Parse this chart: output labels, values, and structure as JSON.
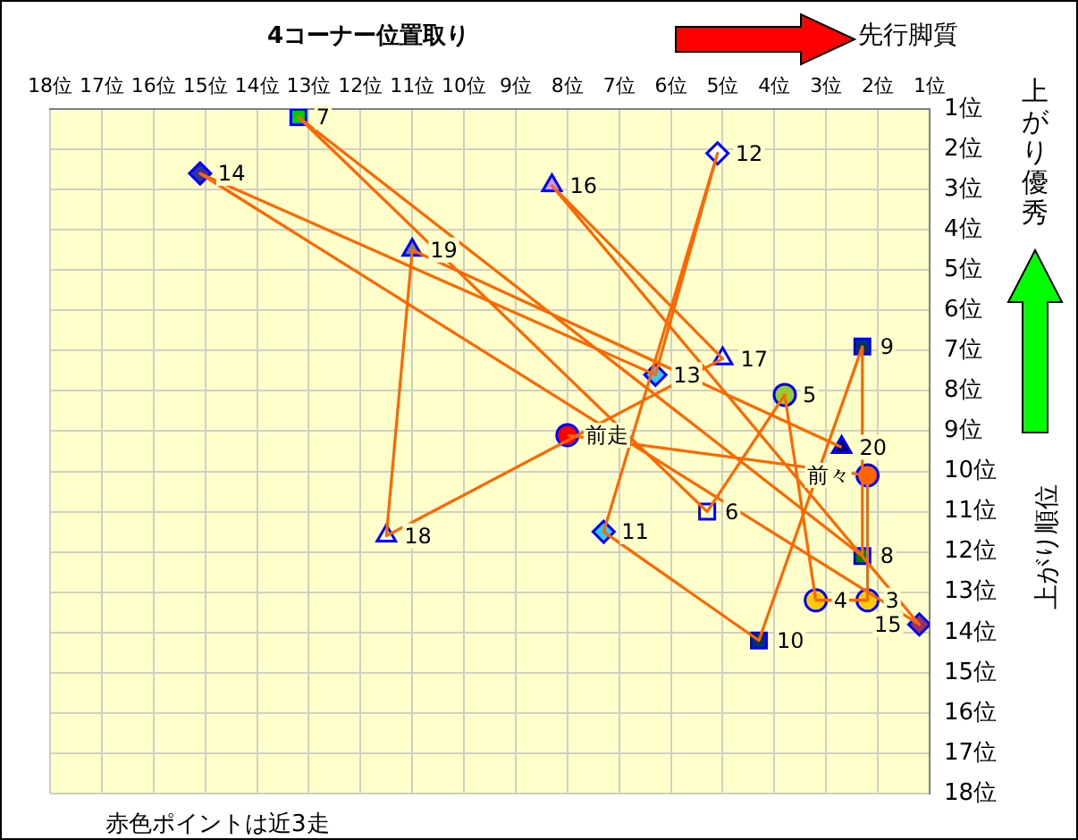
{
  "chart_data": {
    "type": "line",
    "title": "4コーナー位置取り",
    "ylabel": "上がり順位",
    "xlim": [
      18,
      1
    ],
    "ylim": [
      18,
      1
    ],
    "xticks": [
      {
        "value": 18,
        "label": "18位"
      },
      {
        "value": 17,
        "label": "17位"
      },
      {
        "value": 16,
        "label": "16位"
      },
      {
        "value": 15,
        "label": "15位"
      },
      {
        "value": 14,
        "label": "14位"
      },
      {
        "value": 13,
        "label": "13位"
      },
      {
        "value": 12,
        "label": "12位"
      },
      {
        "value": 11,
        "label": "11位"
      },
      {
        "value": 10,
        "label": "10位"
      },
      {
        "value": 9,
        "label": "9位"
      },
      {
        "value": 8,
        "label": "8位"
      },
      {
        "value": 7,
        "label": "7位"
      },
      {
        "value": 6,
        "label": "6位"
      },
      {
        "value": 5,
        "label": "5位"
      },
      {
        "value": 4,
        "label": "4位"
      },
      {
        "value": 3,
        "label": "3位"
      },
      {
        "value": 2,
        "label": "2位"
      },
      {
        "value": 1,
        "label": "1位"
      }
    ],
    "yticks": [
      {
        "value": 1,
        "label": "1位"
      },
      {
        "value": 2,
        "label": "2位"
      },
      {
        "value": 3,
        "label": "3位"
      },
      {
        "value": 4,
        "label": "4位"
      },
      {
        "value": 5,
        "label": "5位"
      },
      {
        "value": 6,
        "label": "6位"
      },
      {
        "value": 7,
        "label": "7位"
      },
      {
        "value": 8,
        "label": "8位"
      },
      {
        "value": 9,
        "label": "9位"
      },
      {
        "value": 10,
        "label": "10位"
      },
      {
        "value": 11,
        "label": "11位"
      },
      {
        "value": 12,
        "label": "12位"
      },
      {
        "value": 13,
        "label": "13位"
      },
      {
        "value": 14,
        "label": "14位"
      },
      {
        "value": 15,
        "label": "15位"
      },
      {
        "value": 16,
        "label": "16位"
      },
      {
        "value": 17,
        "label": "17位"
      },
      {
        "value": 18,
        "label": "18位"
      }
    ],
    "grid": true,
    "legend": false,
    "series": [
      {
        "type": "line",
        "color": "#ff6600",
        "marker": "none",
        "x": [
          8.0,
          2.2,
          2.2,
          3.2,
          3.8,
          5.3,
          13.2,
          2.3,
          2.3,
          4.3,
          7.3,
          5.1,
          6.3,
          15.1,
          1.2,
          8.3,
          5.0,
          11.5,
          11.0,
          2.7
        ],
        "values": [
          9.1,
          10.1,
          13.2,
          13.2,
          8.1,
          11.0,
          1.2,
          12.1,
          6.9,
          14.2,
          11.5,
          2.1,
          7.6,
          2.6,
          13.8,
          2.9,
          7.2,
          11.6,
          4.5,
          9.4
        ]
      },
      {
        "type": "scatter",
        "marker": "circle",
        "color": "#0000ff",
        "x": [
          8.0,
          2.2,
          2.2,
          3.2,
          3.8
        ],
        "values": [
          9.1,
          10.1,
          13.2,
          13.2,
          8.1
        ],
        "colors": [
          "#ff0000",
          "#ff6600",
          "#ffcc00",
          "#ffcc00",
          "#99cc33"
        ]
      },
      {
        "type": "scatter",
        "marker": "square",
        "color": "#0000ff",
        "x": [
          5.3,
          13.2,
          2.3,
          2.3,
          4.3
        ],
        "values": [
          11.0,
          1.2,
          12.1,
          6.9,
          14.2
        ],
        "colors": [
          "#ffffcc",
          "#00cc00",
          "#008000",
          "#003366",
          "#003366"
        ]
      },
      {
        "type": "scatter",
        "marker": "diamond",
        "color": "#0000ff",
        "x": [
          7.3,
          5.1,
          6.3,
          15.1,
          1.2
        ],
        "values": [
          11.5,
          2.1,
          7.6,
          2.6,
          13.8
        ],
        "colors": [
          "#33ccff",
          "#ffffff",
          "#33ccff",
          "#333399",
          "#993366"
        ]
      },
      {
        "type": "scatter",
        "marker": "triangle",
        "color": "#0000ff",
        "x": [
          8.3,
          5.0,
          11.5,
          11.0,
          2.7
        ],
        "values": [
          2.9,
          7.2,
          11.6,
          4.5,
          9.4
        ],
        "colors": [
          "#cc99ff",
          "#ffffff",
          "#ffffff",
          "#808080",
          "#000080"
        ]
      }
    ],
    "annotations": [
      "先行脚質",
      "上がり優秀",
      "赤色ポイントは近3走",
      {
        "text": "前走",
        "x": 8.0,
        "y": 9.1
      },
      {
        "text": "前々",
        "x": 2.2,
        "y": 10.1
      },
      {
        "text": "3",
        "x": 2.2,
        "y": 13.2
      },
      {
        "text": "4",
        "x": 3.2,
        "y": 13.2
      },
      {
        "text": "5",
        "x": 3.8,
        "y": 8.1
      },
      {
        "text": "6",
        "x": 5.3,
        "y": 11.0
      },
      {
        "text": "7",
        "x": 13.2,
        "y": 1.2
      },
      {
        "text": "8",
        "x": 2.3,
        "y": 12.1
      },
      {
        "text": "9",
        "x": 2.3,
        "y": 6.9
      },
      {
        "text": "10",
        "x": 4.3,
        "y": 14.2
      },
      {
        "text": "11",
        "x": 7.3,
        "y": 11.5
      },
      {
        "text": "12",
        "x": 5.1,
        "y": 2.1
      },
      {
        "text": "13",
        "x": 6.3,
        "y": 7.6
      },
      {
        "text": "14",
        "x": 15.1,
        "y": 2.6
      },
      {
        "text": "15",
        "x": 1.2,
        "y": 13.8
      },
      {
        "text": "16",
        "x": 8.3,
        "y": 2.9
      },
      {
        "text": "17",
        "x": 5.0,
        "y": 7.2
      },
      {
        "text": "18",
        "x": 11.5,
        "y": 11.6
      },
      {
        "text": "19",
        "x": 11.0,
        "y": 4.5
      },
      {
        "text": "20",
        "x": 2.7,
        "y": 9.4
      }
    ]
  }
}
